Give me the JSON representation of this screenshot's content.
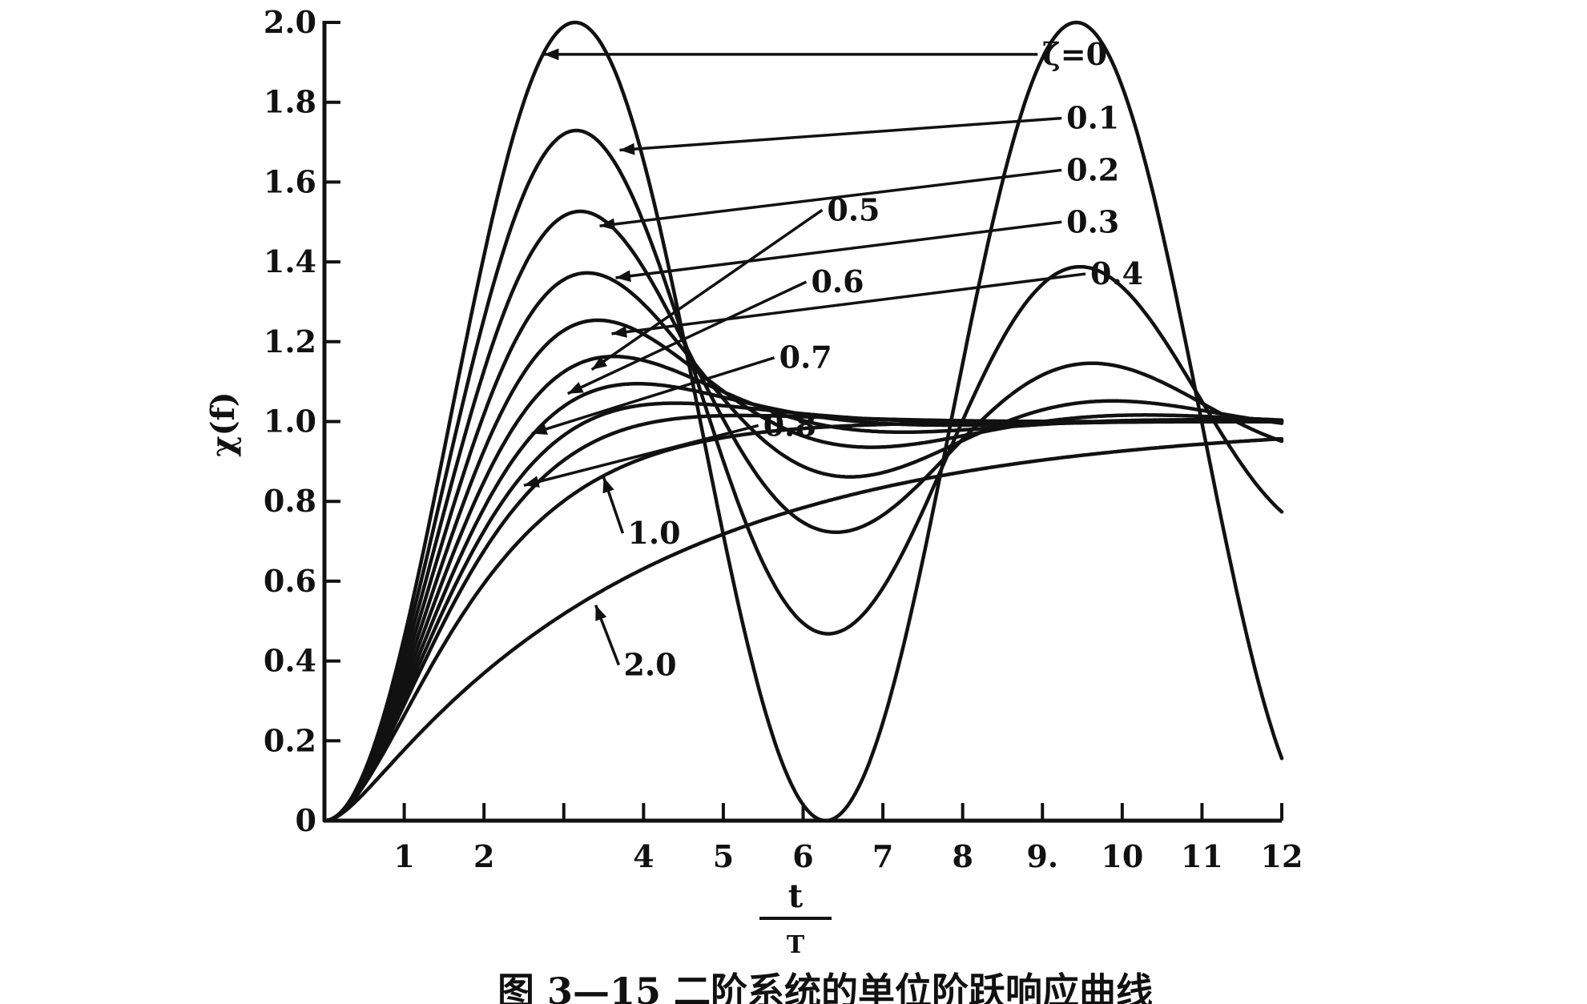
{
  "chart_data": {
    "type": "line",
    "ylabel": "χ(f)",
    "xlabel_numerator": "t",
    "xlabel_denominator": "T",
    "caption": "图 3—15   二阶系统的单位阶跃响应曲线",
    "xlim": [
      0,
      12
    ],
    "ylim": [
      0,
      2.0
    ],
    "x_ticks": [
      1,
      2,
      3,
      4,
      5,
      6,
      7,
      8,
      9,
      10,
      11,
      12
    ],
    "x_tick_labels": [
      "1",
      "2",
      "",
      "4",
      "5",
      "6",
      "7",
      "8",
      "9.",
      "10",
      "11",
      "12"
    ],
    "y_ticks": [
      0,
      0.2,
      0.4,
      0.6,
      0.8,
      1.0,
      1.2,
      1.4,
      1.6,
      1.8,
      2.0
    ],
    "y_tick_labels": [
      "0",
      "0.2",
      "0.4",
      "0.6",
      "0.8",
      "1.0",
      "1.2",
      "1.4",
      "1.6",
      "1.8",
      "2.0"
    ],
    "grid": false,
    "legend": "none",
    "series": [
      {
        "name": "ζ=0",
        "zeta": 0,
        "label_t": 9.0,
        "label_y": 1.92,
        "arrow_t": 2.75,
        "arrow_y": 1.92
      },
      {
        "name": "0.1",
        "zeta": 0.1,
        "label_t": 9.3,
        "label_y": 1.76,
        "arrow_t": 3.7,
        "arrow_y": 1.68
      },
      {
        "name": "0.2",
        "zeta": 0.2,
        "label_t": 9.3,
        "label_y": 1.63,
        "arrow_t": 3.45,
        "arrow_y": 1.49
      },
      {
        "name": "0.3",
        "zeta": 0.3,
        "label_t": 9.3,
        "label_y": 1.5,
        "arrow_t": 3.65,
        "arrow_y": 1.36
      },
      {
        "name": "0.4",
        "zeta": 0.4,
        "label_t": 9.6,
        "label_y": 1.37,
        "arrow_t": 3.6,
        "arrow_y": 1.22
      },
      {
        "name": "0.5",
        "zeta": 0.5,
        "label_t": 6.3,
        "label_y": 1.53,
        "arrow_t": 3.35,
        "arrow_y": 1.13
      },
      {
        "name": "0.6",
        "zeta": 0.6,
        "label_t": 6.1,
        "label_y": 1.35,
        "arrow_t": 3.05,
        "arrow_y": 1.07
      },
      {
        "name": "0.7",
        "zeta": 0.7,
        "label_t": 5.7,
        "label_y": 1.16,
        "arrow_t": 2.6,
        "arrow_y": 0.97
      },
      {
        "name": "0.8",
        "zeta": 0.8,
        "label_t": 5.5,
        "label_y": 0.99,
        "arrow_t": 2.5,
        "arrow_y": 0.84
      },
      {
        "name": "1.0",
        "zeta": 1.0,
        "label_t": 3.8,
        "label_y": 0.72,
        "arrow_t": 3.5,
        "arrow_y": 0.86
      },
      {
        "name": "2.0",
        "zeta": 2.0,
        "label_t": 3.75,
        "label_y": 0.39,
        "arrow_t": 3.4,
        "arrow_y": 0.54
      }
    ]
  }
}
